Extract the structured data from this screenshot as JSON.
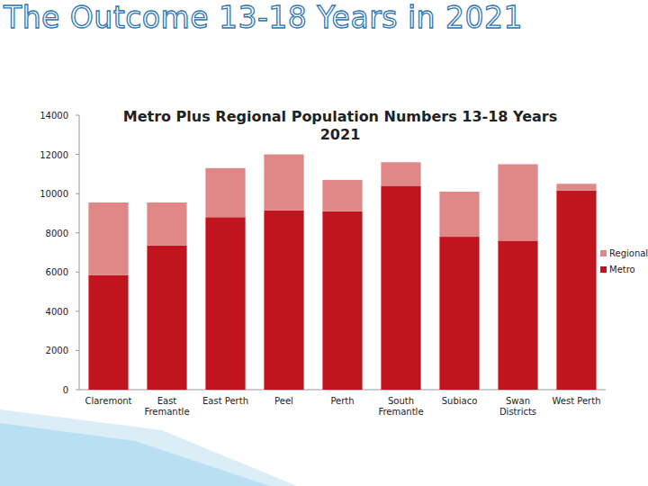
{
  "slide": {
    "title": "The Outcome 13-18 Years in 2021"
  },
  "chart_data": {
    "type": "bar",
    "stacked": true,
    "title": "Metro Plus Regional Population Numbers 13-18 Years 2021",
    "categories": [
      "Claremont",
      "East Fremantle",
      "East Perth",
      "Peel",
      "Perth",
      "South Fremantle",
      "Subiaco",
      "Swan Districts",
      "West Perth"
    ],
    "series": [
      {
        "name": "Metro",
        "color": "#c0151f",
        "values": [
          5850,
          7350,
          8800,
          9150,
          9100,
          10400,
          7800,
          7600,
          10150
        ]
      },
      {
        "name": "Regional",
        "color": "#e08787",
        "values": [
          3700,
          2200,
          2500,
          2850,
          1600,
          1200,
          2300,
          3900,
          350
        ]
      }
    ],
    "ylim": [
      0,
      14000
    ],
    "yticks": [
      0,
      2000,
      4000,
      6000,
      8000,
      10000,
      12000,
      14000
    ],
    "grid": false,
    "legend": "right"
  }
}
